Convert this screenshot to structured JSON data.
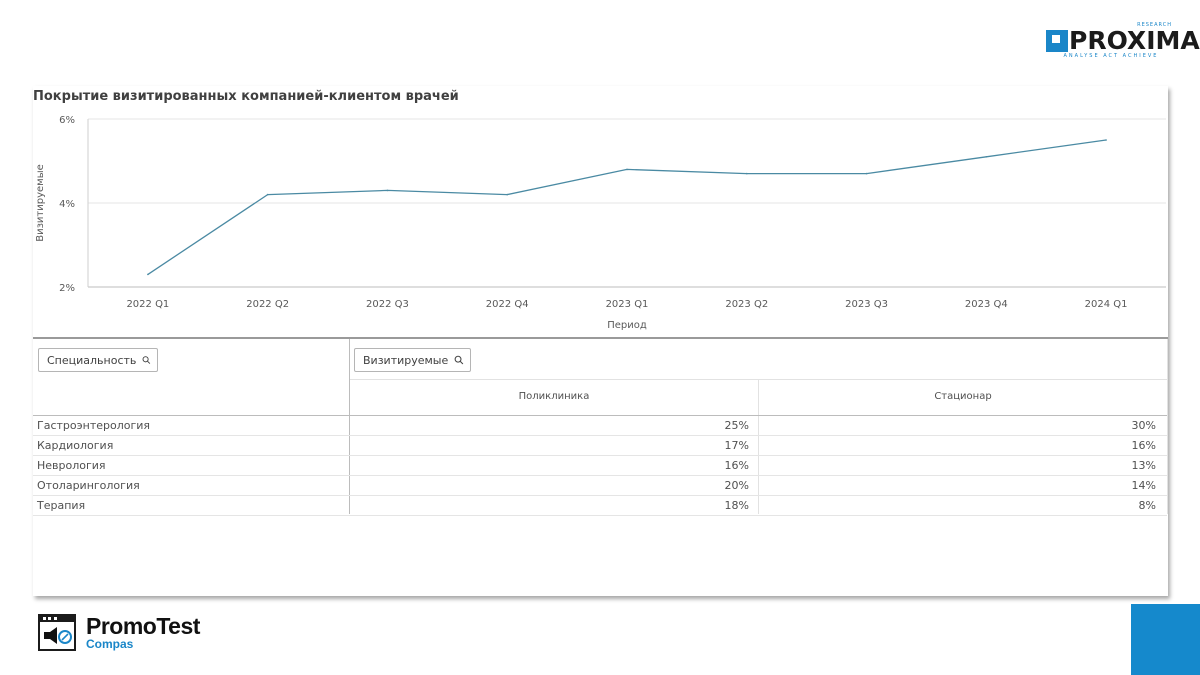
{
  "logo_top": {
    "word": "PROXIMA",
    "research": "RESEARCH",
    "tagline": "ANALYSE ACT ACHIEVE"
  },
  "panel": {
    "title": "Покрытие визитированных компанией-клиентом врачей"
  },
  "chart_data": {
    "type": "line",
    "title": "Покрытие визитированных компанией-клиентом врачей",
    "xlabel": "Период",
    "ylabel": "Визитируемые",
    "categories": [
      "2022 Q1",
      "2022 Q2",
      "2022 Q3",
      "2022 Q4",
      "2023 Q1",
      "2023 Q2",
      "2023 Q3",
      "2023 Q4",
      "2024 Q1"
    ],
    "series": [
      {
        "values": [
          2.3,
          4.2,
          4.3,
          4.2,
          4.8,
          4.7,
          4.7,
          5.1,
          5.5
        ]
      }
    ],
    "yticks": [
      "2%",
      "4%",
      "6%"
    ],
    "ylim": [
      2,
      6
    ],
    "grid": true,
    "line_color": "#4a8aa3"
  },
  "table": {
    "filter_specialty": "Специальность",
    "filter_visited": "Визитируемые",
    "columns": [
      "Поликлиника",
      "Стационар"
    ],
    "rows": [
      {
        "name": "Гастроэнтерология",
        "v1": "25%",
        "v2": "30%"
      },
      {
        "name": "Кардиология",
        "v1": "17%",
        "v2": "16%"
      },
      {
        "name": "Неврология",
        "v1": "16%",
        "v2": "13%"
      },
      {
        "name": "Отоларингология",
        "v1": "20%",
        "v2": "14%"
      },
      {
        "name": "Терапия",
        "v1": "18%",
        "v2": "8%"
      }
    ]
  },
  "logo_bottom": {
    "name": "PromoTest",
    "sub": "Compas"
  },
  "colors": {
    "brand_blue": "#1589cc",
    "line": "#4a8aa3"
  }
}
